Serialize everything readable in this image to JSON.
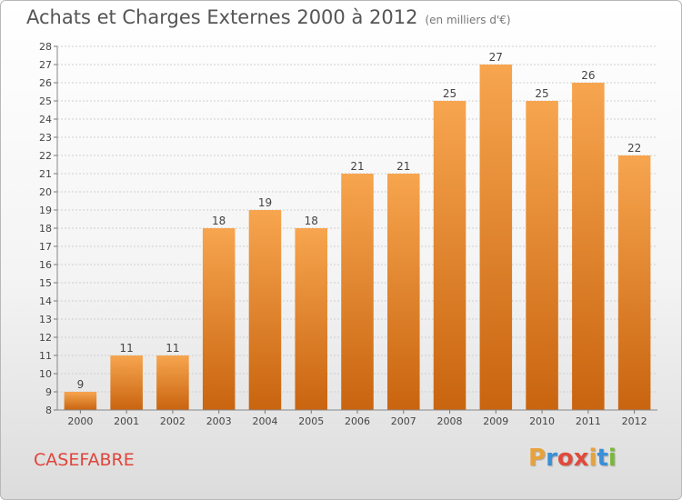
{
  "header": {
    "title": "Achats et Charges Externes 2000 à 2012",
    "subtitle": "(en milliers d'€)"
  },
  "footer": {
    "commune": "CASEFABRE",
    "logo": [
      "P",
      "r",
      "o",
      "x",
      "i",
      "t",
      "i"
    ],
    "logo_colors": [
      "#e8a23a",
      "#3a8fd8",
      "#e04a3a",
      "#e04a3a",
      "#e8a23a",
      "#3a8fd8",
      "#7ab83a"
    ]
  },
  "chart_data": {
    "type": "bar",
    "categories": [
      "2000",
      "2001",
      "2002",
      "2003",
      "2004",
      "2005",
      "2006",
      "2007",
      "2008",
      "2009",
      "2010",
      "2011",
      "2012"
    ],
    "values": [
      9,
      11,
      11,
      18,
      19,
      18,
      21,
      21,
      25,
      27,
      25,
      26,
      22
    ],
    "data_labels": [
      "9",
      "11",
      "11",
      "18",
      "19",
      "18",
      "21",
      "21",
      "25",
      "27",
      "25",
      "26",
      "22"
    ],
    "ylim": [
      8,
      28
    ],
    "yticks": [
      8,
      9,
      10,
      11,
      12,
      13,
      14,
      15,
      16,
      17,
      18,
      19,
      20,
      21,
      22,
      23,
      24,
      25,
      26,
      27,
      28
    ],
    "grid": true,
    "bar_color_top": "#f7a54f",
    "bar_color_bottom": "#c9640f"
  }
}
